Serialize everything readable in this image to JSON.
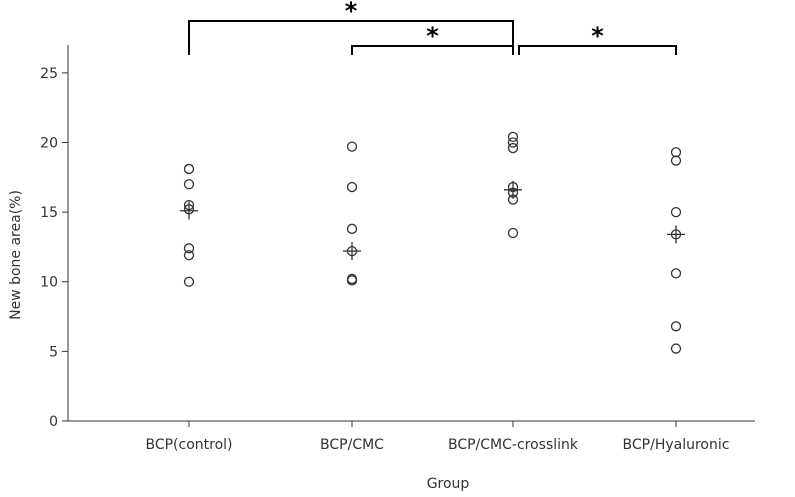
{
  "chart_data": {
    "type": "scatter",
    "title": "",
    "xlabel": "Group",
    "ylabel": "New bone area(%)",
    "ylim": [
      0,
      27
    ],
    "yticks": [
      0,
      5,
      10,
      15,
      20,
      25
    ],
    "categories": [
      "BCP(control)",
      "BCP/CMC",
      "BCP/CMC-crosslink",
      "BCP/Hyaluronic"
    ],
    "points": [
      [
        18.1,
        17.0,
        15.5,
        15.2,
        12.4,
        11.9,
        10.0
      ],
      [
        19.7,
        16.8,
        13.8,
        12.2,
        10.2,
        10.1
      ],
      [
        20.4,
        20.0,
        19.6,
        16.8,
        16.4,
        15.9,
        13.5
      ],
      [
        19.3,
        18.7,
        15.0,
        13.4,
        10.6,
        6.8,
        5.2
      ]
    ],
    "means": [
      15.1,
      12.2,
      16.6,
      13.4
    ],
    "significance": [
      {
        "from": "BCP(control)",
        "to": "BCP/CMC-crosslink",
        "label": "*"
      },
      {
        "from": "BCP/CMC",
        "to": "BCP/CMC-crosslink",
        "label": "*"
      },
      {
        "from": "BCP/CMC-crosslink",
        "to": "BCP/Hyaluronic",
        "label": "*"
      }
    ],
    "grid": false,
    "colors": {
      "marker": "#333333",
      "axis": "#333333",
      "bracket": "#000000"
    }
  }
}
